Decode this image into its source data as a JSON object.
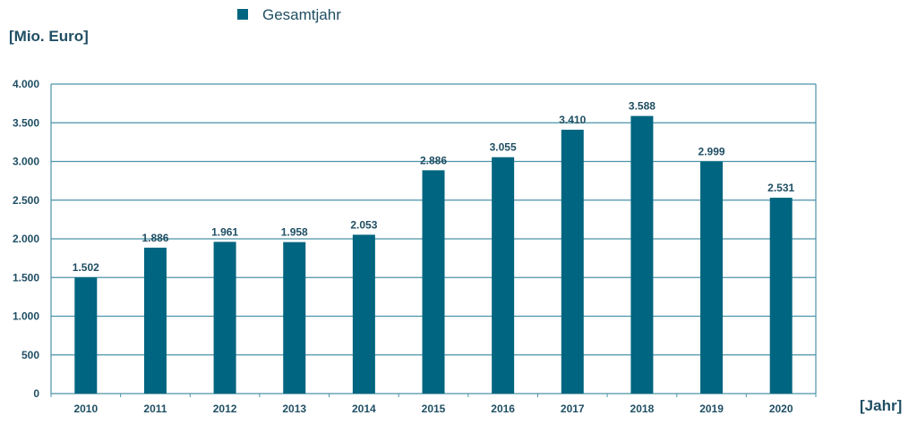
{
  "chart_data": {
    "type": "bar",
    "categories": [
      "2010",
      "2011",
      "2012",
      "2013",
      "2014",
      "2015",
      "2016",
      "2017",
      "2018",
      "2019",
      "2020"
    ],
    "values": [
      1502,
      1886,
      1961,
      1958,
      2053,
      2886,
      3055,
      3410,
      3588,
      2999,
      2531
    ],
    "value_labels": [
      "1.502",
      "1.886",
      "1.961",
      "1.958",
      "2.053",
      "2.886",
      "3.055",
      "3.410",
      "3.588",
      "2.999",
      "2.531"
    ],
    "legend": "Gesamtjahr",
    "legend_placement": "top-center",
    "ylabel": "[Mio. Euro]",
    "xlabel": "[Jahr]",
    "ylim": [
      0,
      4000
    ],
    "yticks": [
      0,
      500,
      1000,
      1500,
      2000,
      2500,
      3000,
      3500,
      4000
    ],
    "ytick_labels": [
      "0",
      "500",
      "1.000",
      "1.500",
      "2.000",
      "2.500",
      "3.000",
      "3.500",
      "4.000"
    ],
    "grid": true,
    "colors": {
      "bar": "#006580",
      "grid": "#4a93a8",
      "text": "#1f4e63"
    }
  }
}
